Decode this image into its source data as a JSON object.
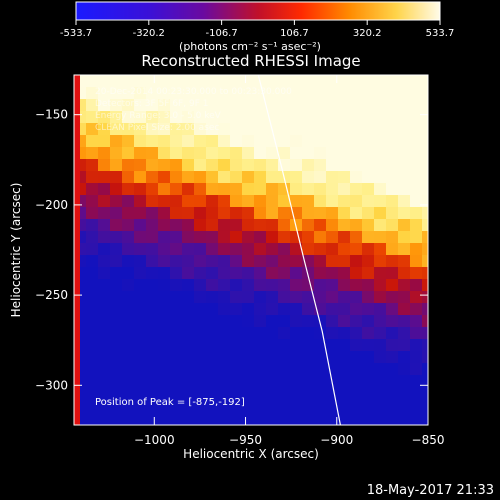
{
  "colorbar": {
    "ticks": [
      -533.7,
      -320.2,
      -106.7,
      106.7,
      320.2,
      533.7
    ],
    "tick_labels": [
      "-533.7",
      "-320.2",
      "-106.7",
      "106.7",
      "320.2",
      "533.7"
    ],
    "unit_label": "(photons cm⁻² s⁻¹ asec⁻²)",
    "range": [
      -533.7,
      533.7
    ],
    "colormap": "heat (blue-purple-red-yellow-white)"
  },
  "chart_data": {
    "type": "heatmap",
    "title": "Reconstructed RHESSI Image",
    "xlabel": "Heliocentric X (arcsec)",
    "ylabel": "Heliocentric Y (arcsec)",
    "xlim": [
      -1044,
      -850
    ],
    "ylim": [
      -322,
      -128
    ],
    "x_ticks": [
      -1000,
      -950,
      -900,
      -850
    ],
    "y_ticks": [
      -300,
      -250,
      -200,
      -150
    ],
    "x_tick_labels": [
      "−1000",
      "−950",
      "−900",
      "−850"
    ],
    "y_tick_labels": [
      "−300",
      "−250",
      "−200",
      "−150"
    ],
    "peak": [
      -875,
      -192
    ],
    "limb_curve": [
      [
        -943,
        -128
      ],
      [
        -930,
        -180
      ],
      [
        -918,
        -230
      ],
      [
        -908,
        -270
      ],
      [
        -898,
        -322
      ]
    ],
    "annotations": [
      "20-Dec-2014 00:23:30.000 to 00:23:30.000",
      "Detectors: 3F 5F 6F, 9F 1",
      "Energy Range: 3.0 - 5.0 keV",
      "CLEAN  Pixel Size: 2.00 asec"
    ],
    "peak_label": "Position of Peak = [-875,-192]"
  },
  "footer": {
    "timestamp": "18-May-2017 21:33"
  },
  "colors": {
    "background": "#000000",
    "axes": "#ffffff"
  }
}
